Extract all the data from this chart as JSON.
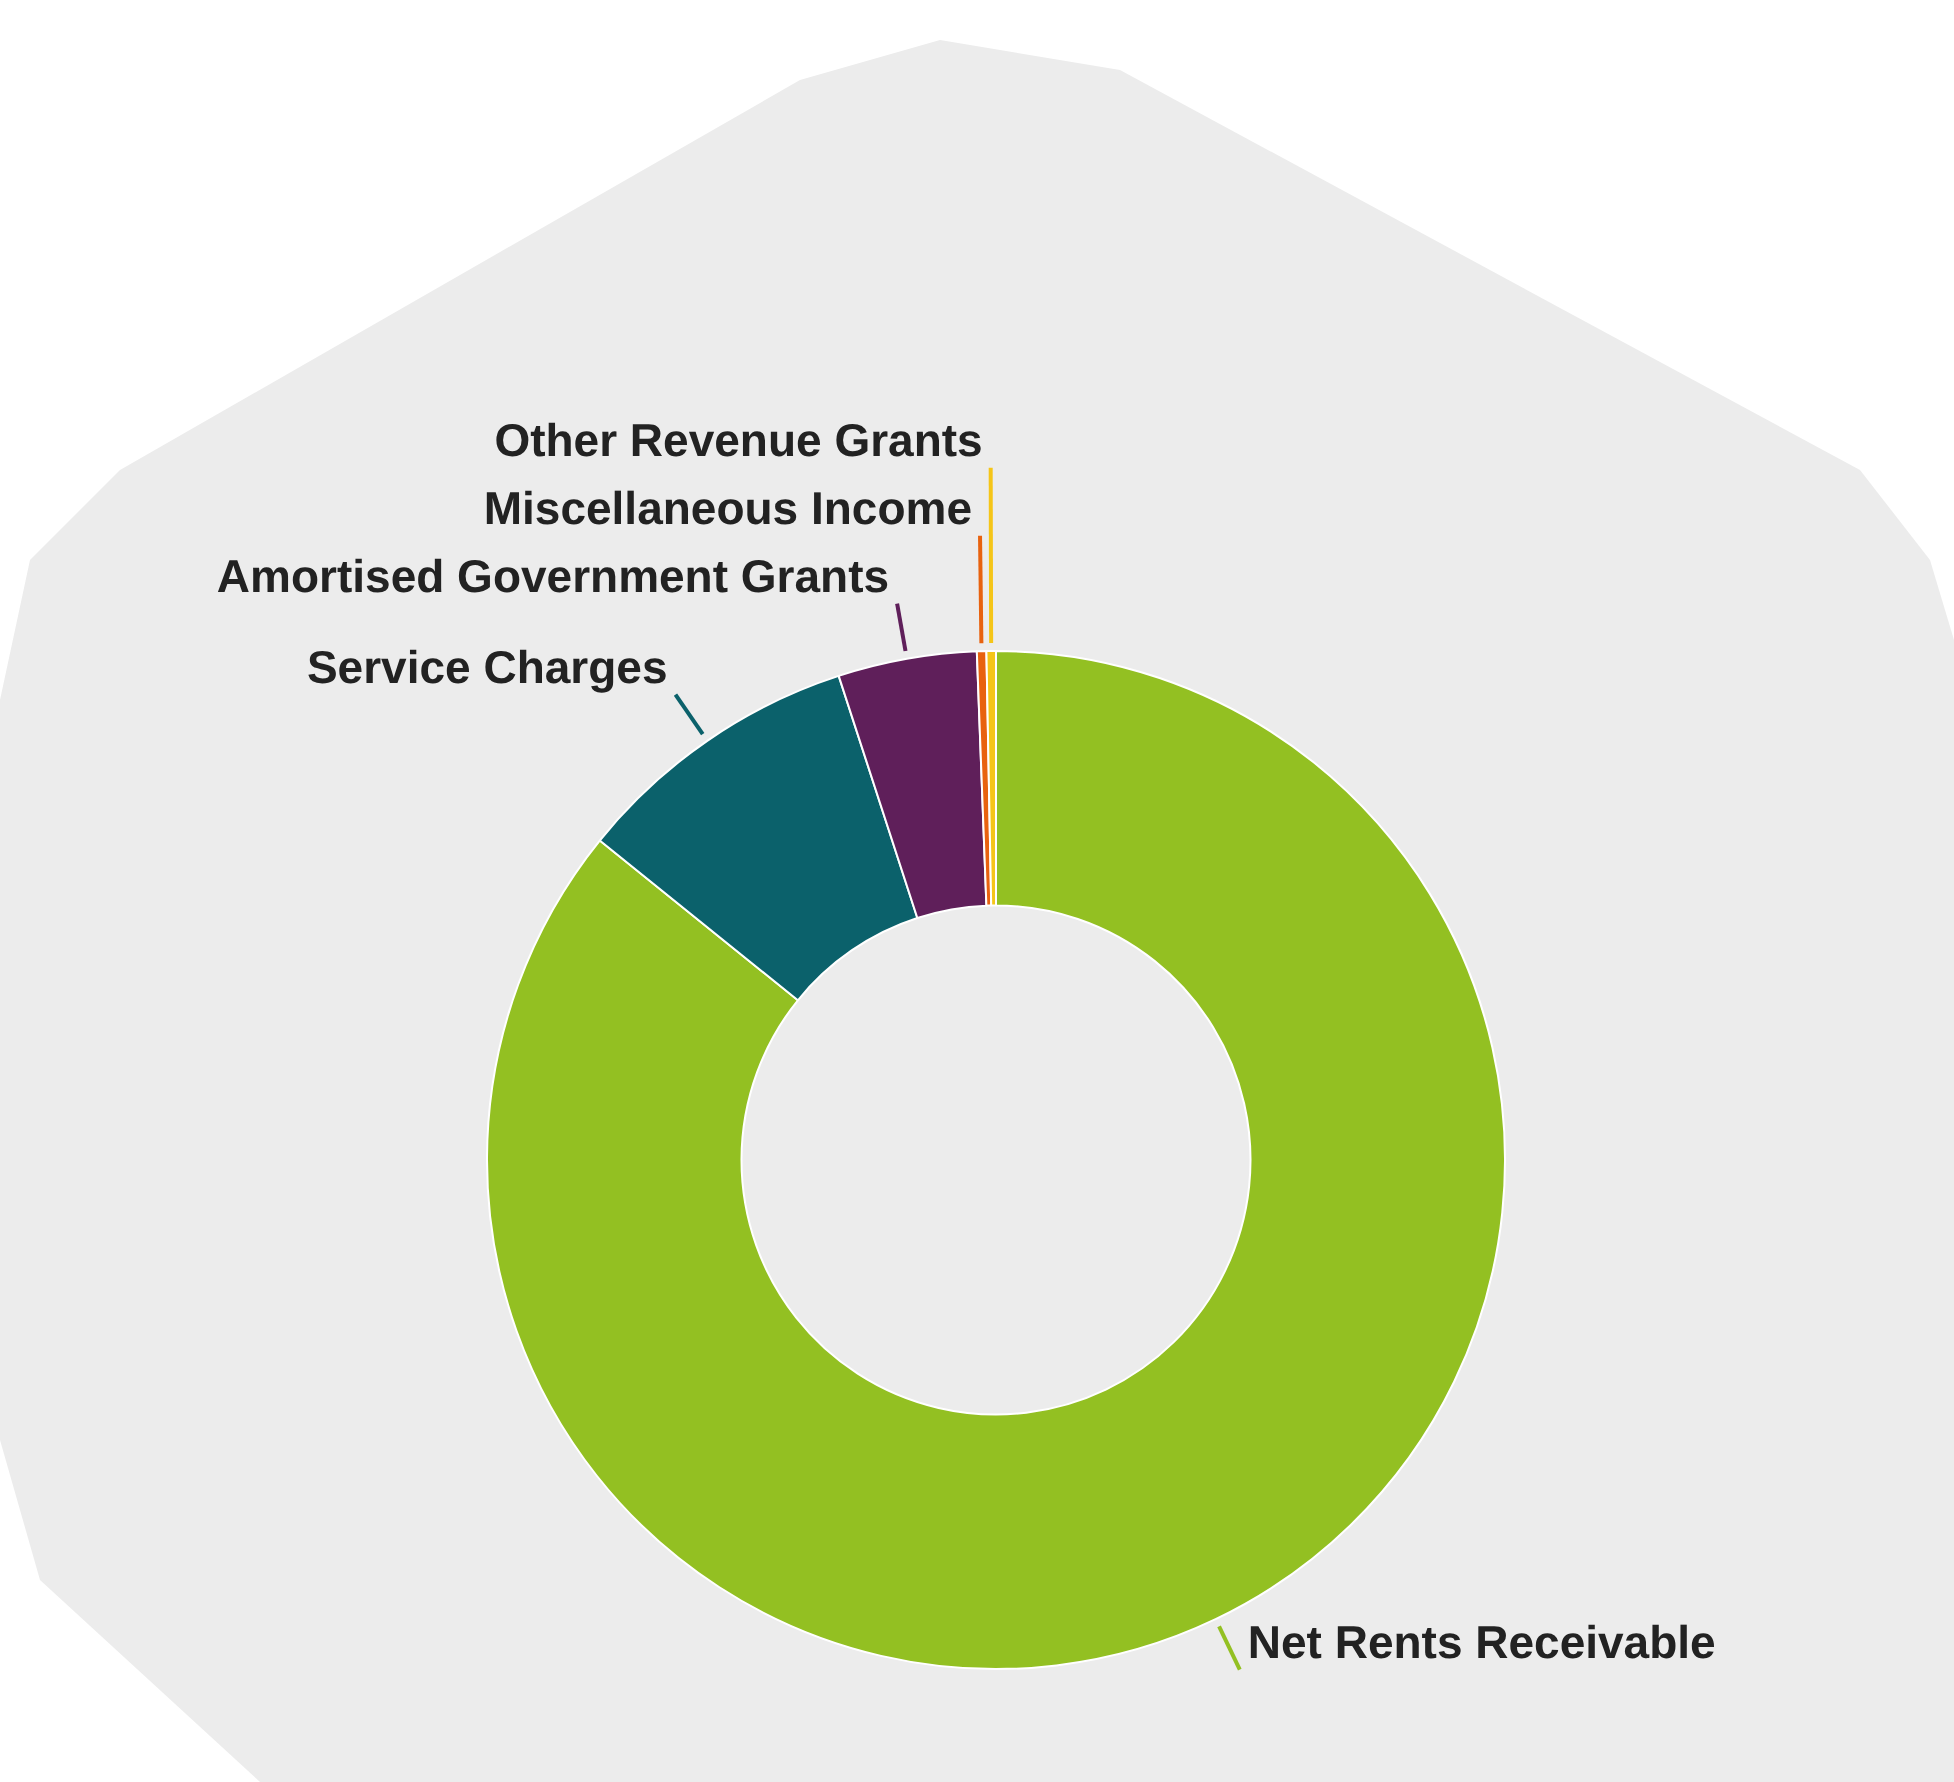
{
  "chart_data": {
    "type": "donut",
    "categories": [
      "Net Rents Receivable",
      "Service Charges",
      "Amortised Government Grants",
      "Miscellaneous Income",
      "Other Revenue Grants"
    ],
    "values": [
      85.8,
      9.2,
      4.4,
      0.3,
      0.3
    ],
    "colors": [
      "#93c022",
      "#0b616b",
      "#5f1f5a",
      "#e8620f",
      "#f5c518"
    ]
  }
}
